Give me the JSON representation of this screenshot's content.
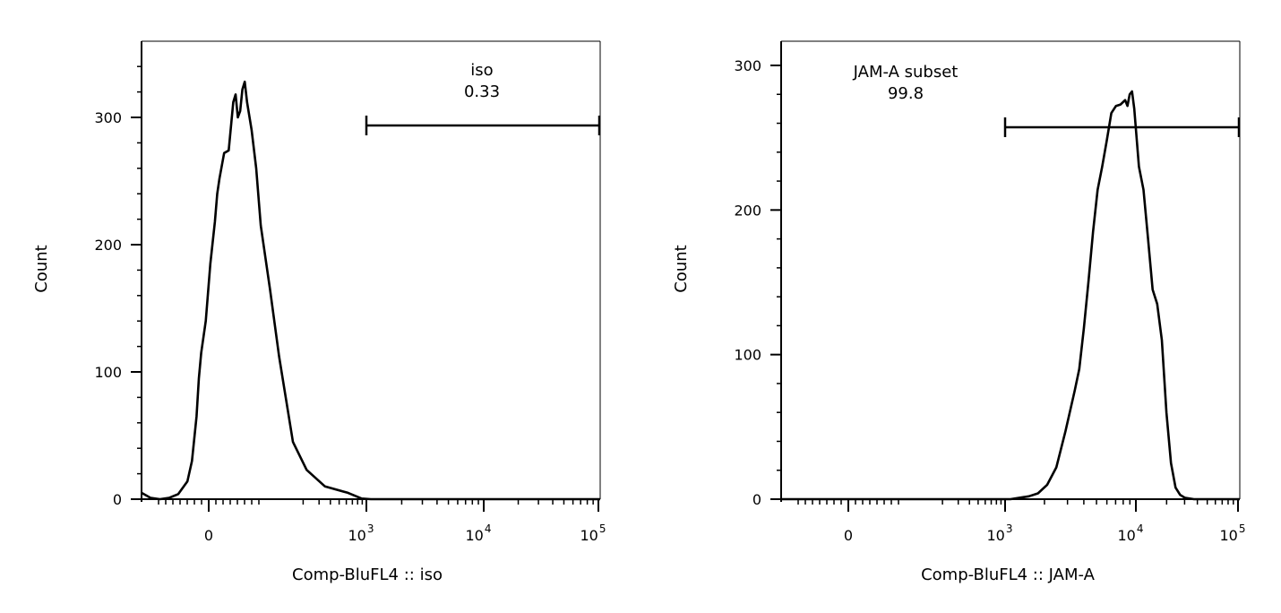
{
  "chart_data": [
    {
      "type": "area",
      "xlabel": "Comp-BluFL4 :: iso",
      "ylabel": "Count",
      "xscale": "biexponential",
      "ylim": [
        0,
        360
      ],
      "y_ticks": [
        {
          "v": 0,
          "label": "0"
        },
        {
          "v": 100,
          "label": "100"
        },
        {
          "v": 200,
          "label": "200"
        },
        {
          "v": 300,
          "label": "300"
        }
      ],
      "x_ticks": [
        {
          "label": "0",
          "sup": ""
        },
        {
          "label": "10",
          "sup": "3"
        },
        {
          "label": "10",
          "sup": "4"
        },
        {
          "label": "10",
          "sup": "5"
        }
      ],
      "gate": {
        "name": "iso",
        "value": "0.33"
      },
      "series": [
        {
          "points": [
            [
              0.0,
              5
            ],
            [
              0.02,
              1
            ],
            [
              0.04,
              0
            ],
            [
              0.06,
              1
            ],
            [
              0.08,
              4
            ],
            [
              0.1,
              14
            ],
            [
              0.11,
              30
            ],
            [
              0.12,
              65
            ],
            [
              0.125,
              95
            ],
            [
              0.13,
              115
            ],
            [
              0.14,
              140
            ],
            [
              0.15,
              185
            ],
            [
              0.16,
              218
            ],
            [
              0.165,
              240
            ],
            [
              0.17,
              252
            ],
            [
              0.18,
              272
            ],
            [
              0.19,
              274
            ],
            [
              0.2,
              312
            ],
            [
              0.205,
              318
            ],
            [
              0.21,
              300
            ],
            [
              0.215,
              305
            ],
            [
              0.22,
              322
            ],
            [
              0.225,
              328
            ],
            [
              0.23,
              312
            ],
            [
              0.24,
              290
            ],
            [
              0.25,
              260
            ],
            [
              0.26,
              215
            ],
            [
              0.28,
              165
            ],
            [
              0.3,
              112
            ],
            [
              0.33,
              45
            ],
            [
              0.36,
              23
            ],
            [
              0.4,
              10
            ],
            [
              0.45,
              5
            ],
            [
              0.48,
              0.5
            ],
            [
              0.5,
              0
            ],
            [
              0.6,
              0
            ],
            [
              0.8,
              0
            ],
            [
              1.0,
              0
            ]
          ]
        }
      ]
    },
    {
      "type": "area",
      "xlabel": "Comp-BluFL4 :: JAM-A",
      "ylabel": "Count",
      "xscale": "biexponential",
      "ylim": [
        0,
        310
      ],
      "y_ticks": [
        {
          "v": 0,
          "label": "0"
        },
        {
          "v": 100,
          "label": "100"
        },
        {
          "v": 200,
          "label": "200"
        },
        {
          "v": 300,
          "label": "300"
        }
      ],
      "x_ticks": [
        {
          "label": "0",
          "sup": ""
        },
        {
          "label": "10",
          "sup": "3"
        },
        {
          "label": "10",
          "sup": "4"
        },
        {
          "label": "10",
          "sup": "5"
        }
      ],
      "gate": {
        "name": "JAM-A subset",
        "value": "99.8"
      },
      "series": [
        {
          "points": [
            [
              0.0,
              0
            ],
            [
              0.4,
              0
            ],
            [
              0.5,
              0
            ],
            [
              0.54,
              2
            ],
            [
              0.56,
              4
            ],
            [
              0.58,
              10
            ],
            [
              0.6,
              22
            ],
            [
              0.62,
              47
            ],
            [
              0.64,
              75
            ],
            [
              0.65,
              90
            ],
            [
              0.66,
              118
            ],
            [
              0.67,
              150
            ],
            [
              0.68,
              185
            ],
            [
              0.69,
              214
            ],
            [
              0.7,
              230
            ],
            [
              0.71,
              248
            ],
            [
              0.72,
              267
            ],
            [
              0.73,
              272
            ],
            [
              0.74,
              273
            ],
            [
              0.75,
              276
            ],
            [
              0.755,
              272
            ],
            [
              0.76,
              280
            ],
            [
              0.765,
              282
            ],
            [
              0.77,
              270
            ],
            [
              0.78,
              230
            ],
            [
              0.79,
              214
            ],
            [
              0.8,
              180
            ],
            [
              0.81,
              145
            ],
            [
              0.82,
              135
            ],
            [
              0.83,
              110
            ],
            [
              0.84,
              60
            ],
            [
              0.85,
              25
            ],
            [
              0.86,
              8
            ],
            [
              0.87,
              3
            ],
            [
              0.88,
              1
            ],
            [
              0.9,
              0
            ],
            [
              1.0,
              0
            ]
          ]
        }
      ]
    }
  ]
}
